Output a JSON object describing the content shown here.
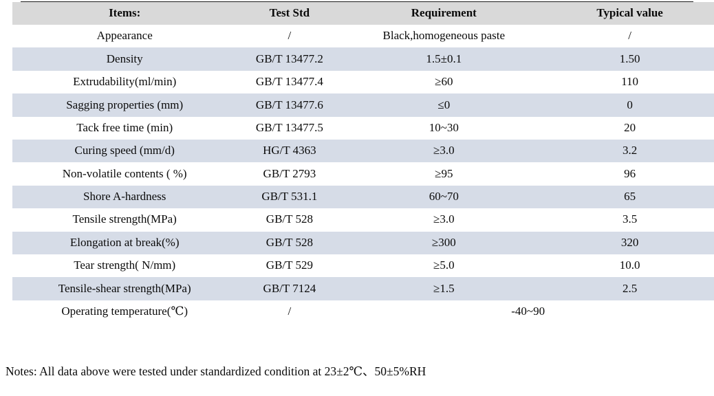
{
  "table": {
    "headers": [
      "Items:",
      "Test Std",
      "Requirement",
      "Typical value"
    ],
    "rows": [
      {
        "item": "Appearance",
        "std": "/",
        "req": "Black,homogeneous paste",
        "typ": "/"
      },
      {
        "item": "Density",
        "std": "GB/T 13477.2",
        "req": "1.5±0.1",
        "typ": "1.50"
      },
      {
        "item": "Extrudability(ml/min)",
        "std": "GB/T 13477.4",
        "req": "≥60",
        "typ": "110"
      },
      {
        "item": "Sagging properties (mm)",
        "std": "GB/T 13477.6",
        "req": "≤0",
        "typ": "0"
      },
      {
        "item": "Tack free time (min)",
        "std": "GB/T 13477.5",
        "req": "10~30",
        "typ": "20"
      },
      {
        "item": "Curing speed (mm/d)",
        "std": "HG/T 4363",
        "req": "≥3.0",
        "typ": "3.2"
      },
      {
        "item": "Non-volatile contents ( %)",
        "std": "GB/T 2793",
        "req": "≥95",
        "typ": "96"
      },
      {
        "item": "Shore A-hardness",
        "std": "GB/T 531.1",
        "req": "60~70",
        "typ": "65"
      },
      {
        "item": "Tensile strength(MPa)",
        "std": "GB/T 528",
        "req": "≥3.0",
        "typ": "3.5"
      },
      {
        "item": "Elongation at break(%)",
        "std": "GB/T 528",
        "req": "≥300",
        "typ": "320"
      },
      {
        "item": "Tear strength( N/mm)",
        "std": "GB/T 529",
        "req": "≥5.0",
        "typ": "10.0"
      },
      {
        "item": "Tensile-shear strength(MPa)",
        "std": "GB/T 7124",
        "req": "≥1.5",
        "typ": "2.5"
      },
      {
        "item": "Operating temperature(℃)",
        "std": "/",
        "req": "-40~90",
        "typ": "",
        "merged": true
      }
    ],
    "colors": {
      "header_bg": "#d9d9d9",
      "stripe_bg": "#d6dce7",
      "plain_bg": "#ffffff",
      "rule_color": "#1c1c1c"
    }
  },
  "notes": "Notes: All data above were tested under standardized condition at 23±2℃、50±5%RH"
}
